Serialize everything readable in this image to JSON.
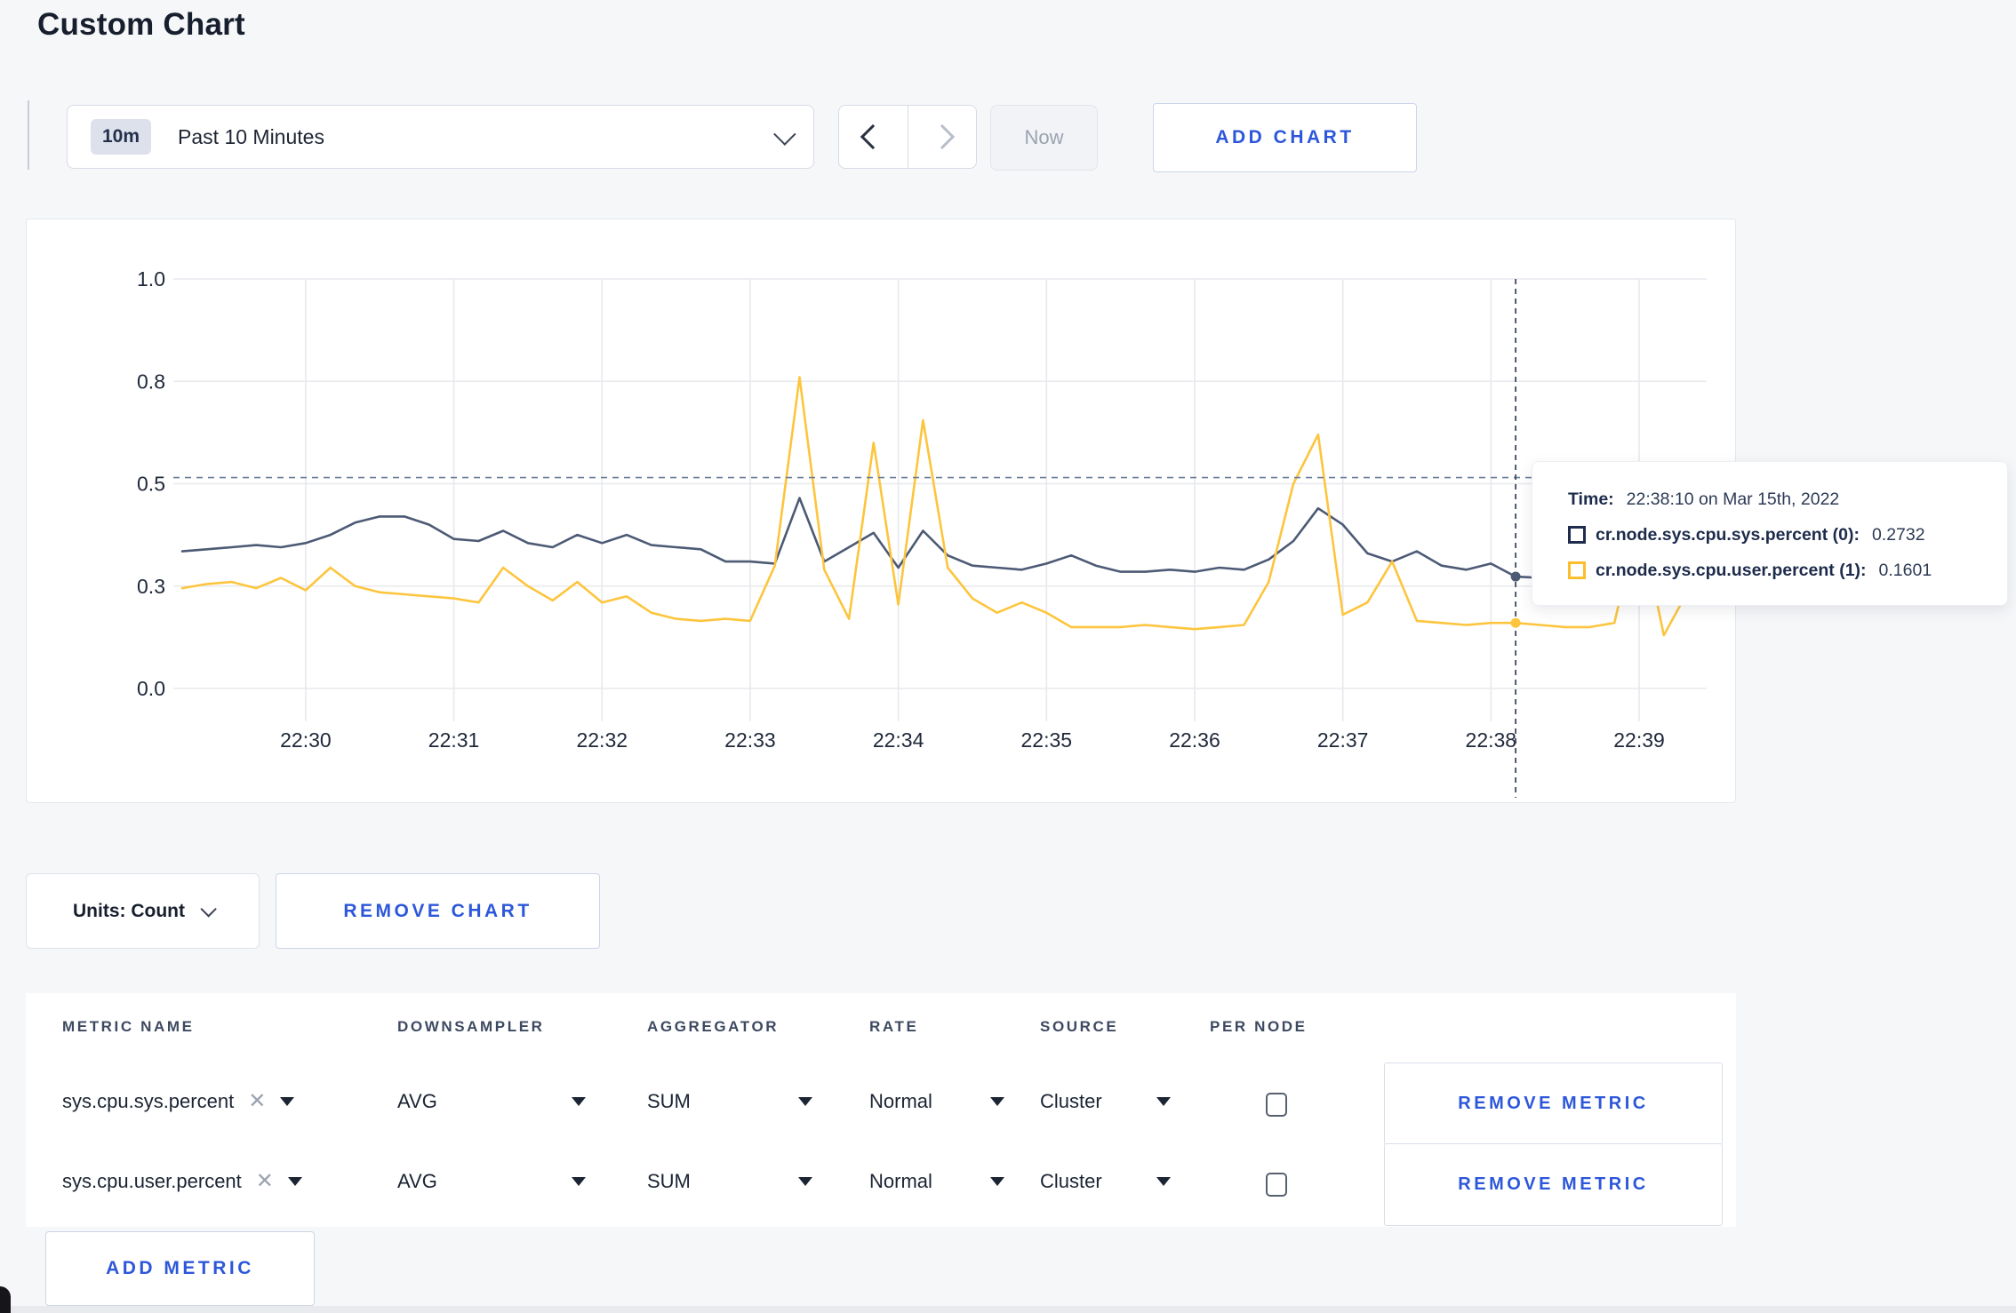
{
  "page": {
    "title": "Custom Chart"
  },
  "toolbar": {
    "range_badge": "10m",
    "range_label": "Past 10 Minutes",
    "now_label": "Now",
    "add_chart_label": "ADD CHART"
  },
  "chart_data": {
    "type": "line",
    "title": "",
    "xlabel": "",
    "ylabel": "",
    "ylim": [
      0,
      1
    ],
    "grid": true,
    "x_ticks": [
      "22:30",
      "22:31",
      "22:32",
      "22:33",
      "22:34",
      "22:35",
      "22:36",
      "22:37",
      "22:38",
      "22:39"
    ],
    "y_ticks": [
      "1.0",
      "0.8",
      "0.5",
      "0.3",
      "0.0"
    ],
    "y_tick_values": [
      1.0,
      0.75,
      0.5,
      0.25,
      0.0
    ],
    "start_time": "22:29:10",
    "interval_seconds": 10,
    "series": [
      {
        "name": "cr.node.sys.cpu.sys.percent (0)",
        "color": "#4c5a75",
        "values": [
          0.335,
          0.34,
          0.345,
          0.35,
          0.345,
          0.355,
          0.375,
          0.405,
          0.42,
          0.42,
          0.4,
          0.365,
          0.36,
          0.385,
          0.355,
          0.345,
          0.375,
          0.355,
          0.375,
          0.35,
          0.345,
          0.34,
          0.31,
          0.31,
          0.305,
          0.465,
          0.31,
          0.345,
          0.38,
          0.295,
          0.385,
          0.325,
          0.3,
          0.295,
          0.29,
          0.305,
          0.325,
          0.3,
          0.285,
          0.285,
          0.29,
          0.285,
          0.295,
          0.29,
          0.315,
          0.36,
          0.44,
          0.4,
          0.33,
          0.31,
          0.335,
          0.3,
          0.29,
          0.305,
          0.2732,
          0.27,
          0.28,
          0.305,
          0.3,
          0.295,
          0.3,
          0.31
        ]
      },
      {
        "name": "cr.node.sys.cpu.user.percent (1)",
        "color": "#fdc53e",
        "values": [
          0.245,
          0.255,
          0.26,
          0.245,
          0.27,
          0.24,
          0.295,
          0.25,
          0.235,
          0.23,
          0.225,
          0.22,
          0.21,
          0.295,
          0.25,
          0.215,
          0.26,
          0.21,
          0.225,
          0.185,
          0.17,
          0.165,
          0.17,
          0.165,
          0.3,
          0.76,
          0.29,
          0.17,
          0.6,
          0.205,
          0.655,
          0.295,
          0.22,
          0.185,
          0.21,
          0.185,
          0.15,
          0.15,
          0.15,
          0.155,
          0.15,
          0.145,
          0.15,
          0.155,
          0.26,
          0.5,
          0.62,
          0.18,
          0.21,
          0.31,
          0.165,
          0.16,
          0.155,
          0.16,
          0.1601,
          0.155,
          0.15,
          0.15,
          0.16,
          0.42,
          0.13,
          0.24
        ]
      }
    ],
    "crosshair": {
      "index": 54,
      "hline_value": 0.515,
      "time": "22:38:10",
      "values": [
        0.2732,
        0.1601
      ]
    },
    "legend_position": "tooltip"
  },
  "tooltip": {
    "time_label": "Time:",
    "time_value": "22:38:10 on Mar 15th, 2022",
    "rows": [
      {
        "label": "cr.node.sys.cpu.sys.percent (0):",
        "value": "0.2732",
        "color": "#1f2c4d"
      },
      {
        "label": "cr.node.sys.cpu.user.percent (1):",
        "value": "0.1601",
        "color": "#fdbe2e"
      }
    ]
  },
  "chart_controls": {
    "units_label": "Units: Count",
    "remove_chart_label": "REMOVE CHART"
  },
  "metrics_table": {
    "headers": [
      "METRIC NAME",
      "DOWNSAMPLER",
      "AGGREGATOR",
      "RATE",
      "SOURCE",
      "PER NODE"
    ],
    "rows": [
      {
        "metric": "sys.cpu.sys.percent",
        "downsampler": "AVG",
        "aggregator": "SUM",
        "rate": "Normal",
        "source": "Cluster",
        "per_node_checked": false,
        "remove_label": "REMOVE METRIC"
      },
      {
        "metric": "sys.cpu.user.percent",
        "downsampler": "AVG",
        "aggregator": "SUM",
        "rate": "Normal",
        "source": "Cluster",
        "per_node_checked": false,
        "remove_label": "REMOVE METRIC"
      }
    ],
    "add_metric_label": "ADD METRIC"
  }
}
